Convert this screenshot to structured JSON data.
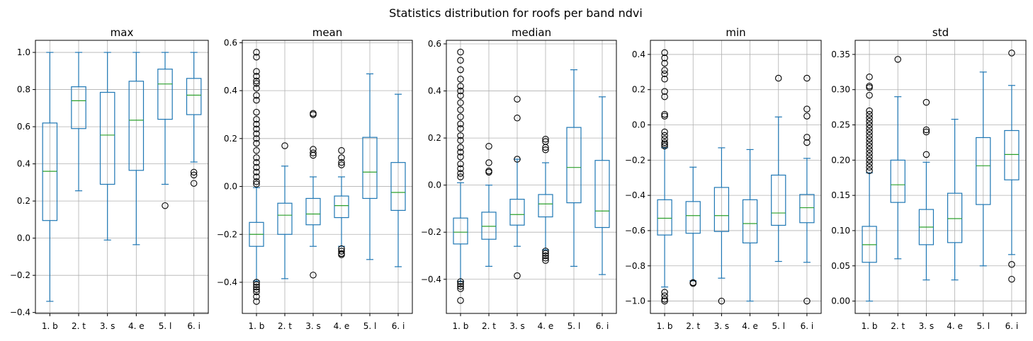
{
  "figure": {
    "title": "Statistics distribution for roofs per band ndvi"
  },
  "colors": {
    "box": "#1f77b4",
    "median": "#2ca02c",
    "grid": "#b0b0b0",
    "axis": "#000000",
    "flier": "#000000"
  },
  "chart_data": [
    {
      "type": "box",
      "title": "max",
      "categories": [
        "1. b",
        "2. t",
        "3. s",
        "4. e",
        "5. l",
        "6. i"
      ],
      "ylim": [
        -0.405,
        1.065
      ],
      "yticks": [
        -0.4,
        -0.2,
        0.0,
        0.2,
        0.4,
        0.6,
        0.8,
        1.0
      ],
      "ytick_labels": [
        "−0.4",
        "−0.2",
        "0.0",
        "0.2",
        "0.4",
        "0.6",
        "0.8",
        "1.0"
      ],
      "grid": true,
      "boxes": [
        {
          "q1": 0.095,
          "median": 0.36,
          "q3": 0.62,
          "whisker_low": -0.34,
          "whisker_high": 1.0,
          "fliers": []
        },
        {
          "q1": 0.59,
          "median": 0.74,
          "q3": 0.815,
          "whisker_low": 0.255,
          "whisker_high": 1.0,
          "fliers": []
        },
        {
          "q1": 0.29,
          "median": 0.555,
          "q3": 0.785,
          "whisker_low": -0.01,
          "whisker_high": 1.0,
          "fliers": []
        },
        {
          "q1": 0.365,
          "median": 0.635,
          "q3": 0.845,
          "whisker_low": -0.035,
          "whisker_high": 1.0,
          "fliers": []
        },
        {
          "q1": 0.64,
          "median": 0.83,
          "q3": 0.91,
          "whisker_low": 0.29,
          "whisker_high": 1.0,
          "fliers": [
            0.175
          ]
        },
        {
          "q1": 0.665,
          "median": 0.77,
          "q3": 0.86,
          "whisker_low": 0.41,
          "whisker_high": 1.0,
          "fliers": [
            0.355,
            0.34,
            0.295
          ]
        }
      ]
    },
    {
      "type": "box",
      "title": "mean",
      "categories": [
        "1. b",
        "2. t",
        "3. s",
        "4. e",
        "5. l",
        "6. i"
      ],
      "ylim": [
        -0.53,
        0.61
      ],
      "yticks": [
        -0.4,
        -0.2,
        0.0,
        0.2,
        0.4,
        0.6
      ],
      "ytick_labels": [
        "−0.4",
        "−0.2",
        "0.0",
        "0.2",
        "0.4",
        "0.6"
      ],
      "grid": true,
      "boxes": [
        {
          "q1": -0.25,
          "median": -0.2,
          "q3": -0.15,
          "whisker_low": -0.395,
          "whisker_high": -0.005,
          "fliers": [
            0.56,
            0.54,
            0.48,
            0.46,
            0.44,
            0.43,
            0.41,
            0.38,
            0.36,
            0.31,
            0.28,
            0.26,
            0.24,
            0.22,
            0.2,
            0.18,
            0.15,
            0.12,
            0.1,
            0.08,
            0.06,
            0.04,
            0.02,
            0.01,
            -0.4,
            -0.41,
            -0.42,
            -0.43,
            -0.44,
            -0.46,
            -0.48
          ]
        },
        {
          "q1": -0.2,
          "median": -0.12,
          "q3": -0.07,
          "whisker_low": -0.385,
          "whisker_high": 0.085,
          "fliers": [
            0.17
          ]
        },
        {
          "q1": -0.16,
          "median": -0.115,
          "q3": -0.05,
          "whisker_low": -0.25,
          "whisker_high": 0.04,
          "fliers": [
            0.305,
            0.3,
            0.155,
            0.14,
            0.13,
            -0.37
          ]
        },
        {
          "q1": -0.13,
          "median": -0.08,
          "q3": -0.04,
          "whisker_low": -0.25,
          "whisker_high": 0.04,
          "fliers": [
            0.15,
            0.12,
            0.1,
            0.09,
            -0.26,
            -0.27,
            -0.28,
            -0.285
          ]
        },
        {
          "q1": -0.05,
          "median": 0.06,
          "q3": 0.205,
          "whisker_low": -0.305,
          "whisker_high": 0.47,
          "fliers": []
        },
        {
          "q1": -0.1,
          "median": -0.025,
          "q3": 0.1,
          "whisker_low": -0.335,
          "whisker_high": 0.385,
          "fliers": []
        }
      ]
    },
    {
      "type": "box",
      "title": "median",
      "categories": [
        "1. b",
        "2. t",
        "3. s",
        "4. e",
        "5. l",
        "6. i"
      ],
      "ylim": [
        -0.545,
        0.615
      ],
      "yticks": [
        -0.4,
        -0.2,
        0.0,
        0.2,
        0.4,
        0.6
      ],
      "ytick_labels": [
        "−0.4",
        "−0.2",
        "0.0",
        "0.2",
        "0.4",
        "0.6"
      ],
      "grid": true,
      "boxes": [
        {
          "q1": -0.25,
          "median": -0.2,
          "q3": -0.14,
          "whisker_low": -0.41,
          "whisker_high": 0.01,
          "fliers": [
            0.565,
            0.53,
            0.49,
            0.45,
            0.42,
            0.4,
            0.38,
            0.35,
            0.32,
            0.29,
            0.26,
            0.24,
            0.21,
            0.19,
            0.16,
            0.14,
            0.12,
            0.09,
            0.07,
            0.05,
            0.035,
            -0.41,
            -0.42,
            -0.43,
            -0.44,
            -0.49
          ]
        },
        {
          "q1": -0.23,
          "median": -0.175,
          "q3": -0.115,
          "whisker_low": -0.345,
          "whisker_high": 0.0,
          "fliers": [
            0.165,
            0.095,
            0.06,
            0.055
          ]
        },
        {
          "q1": -0.17,
          "median": -0.125,
          "q3": -0.06,
          "whisker_low": -0.26,
          "whisker_high": 0.11,
          "fliers": [
            0.365,
            0.285,
            0.11,
            -0.385
          ]
        },
        {
          "q1": -0.135,
          "median": -0.08,
          "q3": -0.04,
          "whisker_low": -0.275,
          "whisker_high": 0.095,
          "fliers": [
            0.195,
            0.185,
            0.16,
            0.15,
            -0.28,
            -0.29,
            -0.3,
            -0.31,
            -0.32
          ]
        },
        {
          "q1": -0.075,
          "median": 0.075,
          "q3": 0.245,
          "whisker_low": -0.345,
          "whisker_high": 0.49,
          "fliers": []
        },
        {
          "q1": -0.18,
          "median": -0.11,
          "q3": 0.105,
          "whisker_low": -0.38,
          "whisker_high": 0.375,
          "fliers": []
        }
      ]
    },
    {
      "type": "box",
      "title": "min",
      "categories": [
        "1. b",
        "2. t",
        "3. s",
        "4. e",
        "5. l",
        "6. i"
      ],
      "ylim": [
        -1.07,
        0.48
      ],
      "yticks": [
        -1.0,
        -0.8,
        -0.6,
        -0.4,
        -0.2,
        0.0,
        0.2,
        0.4
      ],
      "ytick_labels": [
        "−1.0",
        "−0.8",
        "−0.6",
        "−0.4",
        "−0.2",
        "0.0",
        "0.2",
        "0.4"
      ],
      "grid": true,
      "boxes": [
        {
          "q1": -0.625,
          "median": -0.53,
          "q3": -0.425,
          "whisker_low": -0.92,
          "whisker_high": -0.13,
          "fliers": [
            0.41,
            0.38,
            0.35,
            0.31,
            0.29,
            0.26,
            0.19,
            0.16,
            0.06,
            0.05,
            -0.04,
            -0.06,
            -0.08,
            -0.1,
            -0.11,
            -0.12,
            -0.95,
            -0.97,
            -0.99,
            -1.0
          ]
        },
        {
          "q1": -0.615,
          "median": -0.515,
          "q3": -0.435,
          "whisker_low": -0.885,
          "whisker_high": -0.24,
          "fliers": [
            -0.895,
            -0.9
          ]
        },
        {
          "q1": -0.605,
          "median": -0.515,
          "q3": -0.355,
          "whisker_low": -0.87,
          "whisker_high": -0.13,
          "fliers": [
            -1.0
          ]
        },
        {
          "q1": -0.67,
          "median": -0.56,
          "q3": -0.425,
          "whisker_low": -1.0,
          "whisker_high": -0.14,
          "fliers": []
        },
        {
          "q1": -0.57,
          "median": -0.5,
          "q3": -0.285,
          "whisker_low": -0.775,
          "whisker_high": 0.045,
          "fliers": [
            0.265
          ]
        },
        {
          "q1": -0.555,
          "median": -0.47,
          "q3": -0.395,
          "whisker_low": -0.78,
          "whisker_high": -0.19,
          "fliers": [
            0.265,
            0.09,
            0.05,
            -0.07,
            -0.1,
            -1.0
          ]
        }
      ]
    },
    {
      "type": "box",
      "title": "std",
      "categories": [
        "1. b",
        "2. t",
        "3. s",
        "4. e",
        "5. l",
        "6. i"
      ],
      "ylim": [
        -0.0175,
        0.37
      ],
      "yticks": [
        0.0,
        0.05,
        0.1,
        0.15,
        0.2,
        0.25,
        0.3,
        0.35
      ],
      "ytick_labels": [
        "0.00",
        "0.05",
        "0.10",
        "0.15",
        "0.20",
        "0.25",
        "0.30",
        "0.35"
      ],
      "grid": true,
      "boxes": [
        {
          "q1": 0.055,
          "median": 0.08,
          "q3": 0.106,
          "whisker_low": 0.0,
          "whisker_high": 0.182,
          "fliers": [
            0.318,
            0.305,
            0.303,
            0.292,
            0.27,
            0.265,
            0.26,
            0.255,
            0.25,
            0.245,
            0.24,
            0.235,
            0.23,
            0.225,
            0.22,
            0.215,
            0.21,
            0.205,
            0.2,
            0.195,
            0.19,
            0.185
          ]
        },
        {
          "q1": 0.14,
          "median": 0.165,
          "q3": 0.2,
          "whisker_low": 0.06,
          "whisker_high": 0.29,
          "fliers": [
            0.343
          ]
        },
        {
          "q1": 0.08,
          "median": 0.105,
          "q3": 0.13,
          "whisker_low": 0.03,
          "whisker_high": 0.197,
          "fliers": [
            0.282,
            0.243,
            0.24,
            0.208
          ]
        },
        {
          "q1": 0.083,
          "median": 0.117,
          "q3": 0.153,
          "whisker_low": 0.03,
          "whisker_high": 0.258,
          "fliers": []
        },
        {
          "q1": 0.137,
          "median": 0.192,
          "q3": 0.232,
          "whisker_low": 0.05,
          "whisker_high": 0.325,
          "fliers": []
        },
        {
          "q1": 0.172,
          "median": 0.208,
          "q3": 0.242,
          "whisker_low": 0.066,
          "whisker_high": 0.306,
          "fliers": [
            0.352,
            0.052,
            0.031
          ]
        }
      ]
    }
  ]
}
